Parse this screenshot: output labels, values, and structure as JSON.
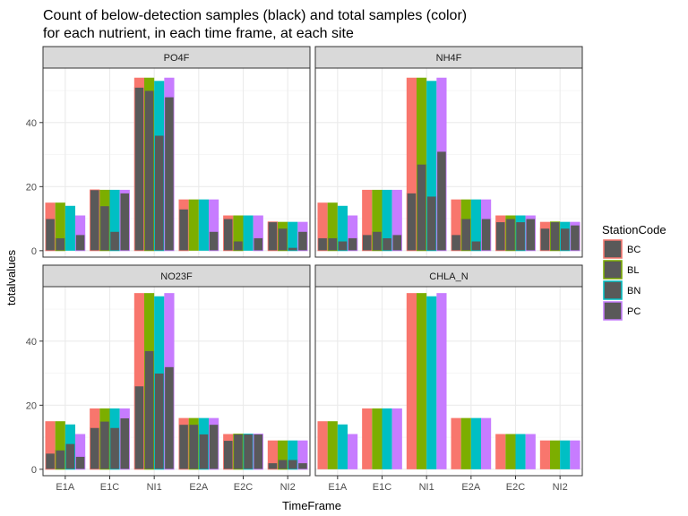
{
  "chart_data": {
    "type": "bar",
    "title_lines": [
      "Count of below-detection samples (black) and total samples (color)",
      "for each nutrient, in each time frame, at each site"
    ],
    "xlabel": "TimeFrame",
    "ylabel": "totalvalues",
    "ylim": [
      -2,
      57
    ],
    "yticks": [
      0,
      20,
      40
    ],
    "categories": [
      "E1A",
      "E1C",
      "NI1",
      "E2A",
      "E2C",
      "NI2"
    ],
    "legend": {
      "title": "StationCode",
      "position": "right",
      "items": [
        "BC",
        "BL",
        "BN",
        "PC"
      ]
    },
    "colors": {
      "BC": "#F8766D",
      "BL": "#7CAE00",
      "BN": "#00BFC4",
      "PC": "#C77CFF",
      "below": "#595959"
    },
    "grid": true,
    "panels": [
      {
        "label": "PO4F",
        "total": {
          "BC": [
            15,
            19,
            54,
            16,
            11,
            9
          ],
          "BL": [
            15,
            19,
            54,
            16,
            11,
            9
          ],
          "BN": [
            14,
            19,
            53,
            16,
            11,
            9
          ],
          "PC": [
            11,
            19,
            54,
            16,
            11,
            9
          ]
        },
        "below": {
          "BC": [
            10,
            19,
            51,
            13,
            10,
            9
          ],
          "BL": [
            4,
            14,
            50,
            0,
            3,
            7
          ],
          "BN": [
            0,
            6,
            36,
            0,
            0,
            1
          ],
          "PC": [
            5,
            18,
            48,
            6,
            4,
            6
          ]
        }
      },
      {
        "label": "NH4F",
        "total": {
          "BC": [
            15,
            19,
            54,
            16,
            11,
            9
          ],
          "BL": [
            15,
            19,
            54,
            16,
            11,
            9
          ],
          "BN": [
            14,
            19,
            53,
            16,
            11,
            9
          ],
          "PC": [
            11,
            19,
            54,
            16,
            11,
            9
          ]
        },
        "below": {
          "BC": [
            4,
            5,
            18,
            5,
            9,
            7
          ],
          "BL": [
            4,
            6,
            27,
            10,
            10,
            9
          ],
          "BN": [
            3,
            4,
            17,
            3,
            9,
            7
          ],
          "PC": [
            4,
            5,
            31,
            10,
            10,
            8
          ]
        }
      },
      {
        "label": "NO23F",
        "total": {
          "BC": [
            15,
            19,
            55,
            16,
            11,
            9
          ],
          "BL": [
            15,
            19,
            55,
            16,
            11,
            9
          ],
          "BN": [
            14,
            19,
            54,
            16,
            11,
            9
          ],
          "PC": [
            11,
            19,
            55,
            16,
            11,
            9
          ]
        },
        "below": {
          "BC": [
            5,
            13,
            26,
            14,
            9,
            2
          ],
          "BL": [
            6,
            15,
            37,
            14,
            11,
            3
          ],
          "BN": [
            8,
            13,
            30,
            11,
            11,
            3
          ],
          "PC": [
            4,
            16,
            32,
            14,
            11,
            2
          ]
        }
      },
      {
        "label": "CHLA_N",
        "total": {
          "BC": [
            15,
            19,
            55,
            16,
            11,
            9
          ],
          "BL": [
            15,
            19,
            55,
            16,
            11,
            9
          ],
          "BN": [
            14,
            19,
            54,
            16,
            11,
            9
          ],
          "PC": [
            11,
            19,
            55,
            16,
            11,
            9
          ]
        },
        "below": {
          "BC": [
            0,
            0,
            0,
            0,
            0,
            0
          ],
          "BL": [
            0,
            0,
            0,
            0,
            0,
            0
          ],
          "BN": [
            0,
            0,
            0,
            0,
            0,
            0
          ],
          "PC": [
            0,
            0,
            0,
            0,
            0,
            0
          ]
        }
      }
    ]
  }
}
